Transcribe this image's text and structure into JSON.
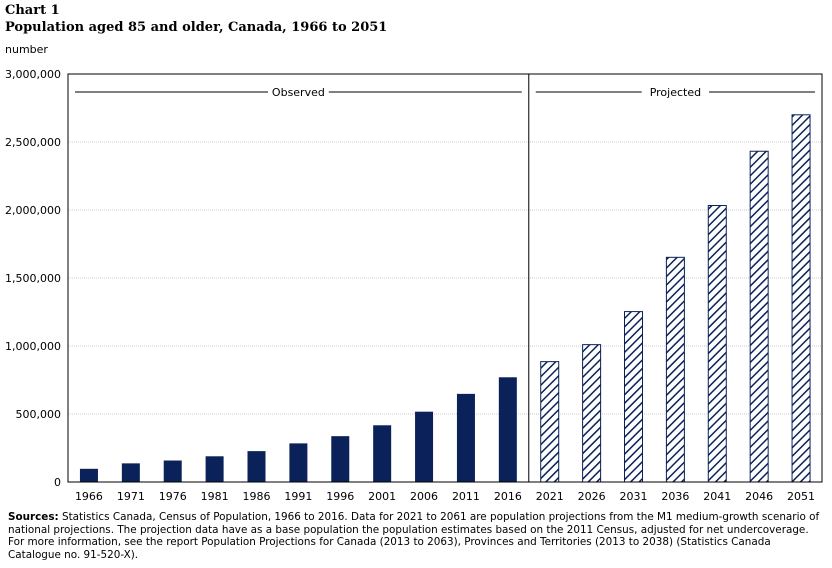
{
  "header": {
    "chart_number": "Chart 1",
    "title": "Population aged 85 and older, Canada, 1966 to 2051",
    "unit": "number"
  },
  "footer": {
    "sources_label": "Sources:",
    "sources_text": "Statistics Canada, Census of Population, 1966 to 2016. Data for 2021 to 2061 are population projections from the M1 medium-growth scenario of national projections. The projection data have as a base population the population estimates based on the 2011 Census, adjusted for net undercoverage. For more information, see the report Population Projections for Canada (2013 to 2063), Provinces and Territories (2013 to 2038) (Statistics Canada Catalogue no. 91-520-X)."
  },
  "chart_data": {
    "type": "bar",
    "title": "Population aged 85 and older, Canada, 1966 to 2051",
    "ylabel": "number",
    "xlabel": "",
    "ylim": [
      0,
      3000000
    ],
    "yticks": [
      0,
      500000,
      1000000,
      1500000,
      2000000,
      2500000,
      3000000
    ],
    "ytick_labels": [
      "0",
      "500,000",
      "1,000,000",
      "1,500,000",
      "2,000,000",
      "2,500,000",
      "3,000,000"
    ],
    "grid": true,
    "categories": [
      "1966",
      "1971",
      "1976",
      "1981",
      "1986",
      "1991",
      "1996",
      "2001",
      "2006",
      "2011",
      "2016",
      "2021",
      "2026",
      "2031",
      "2036",
      "2041",
      "2046",
      "2051"
    ],
    "values": [
      97000,
      137000,
      158000,
      189000,
      227000,
      284000,
      337000,
      417000,
      517000,
      648000,
      770000,
      885000,
      1010000,
      1253000,
      1652000,
      2033000,
      2432000,
      2700000
    ],
    "sections": [
      {
        "name": "Observed",
        "from": "1966",
        "to": "2016",
        "style": "solid",
        "color": "#0a2159"
      },
      {
        "name": "Projected",
        "from": "2021",
        "to": "2051",
        "style": "hatched",
        "color": "#0a2159"
      }
    ]
  }
}
